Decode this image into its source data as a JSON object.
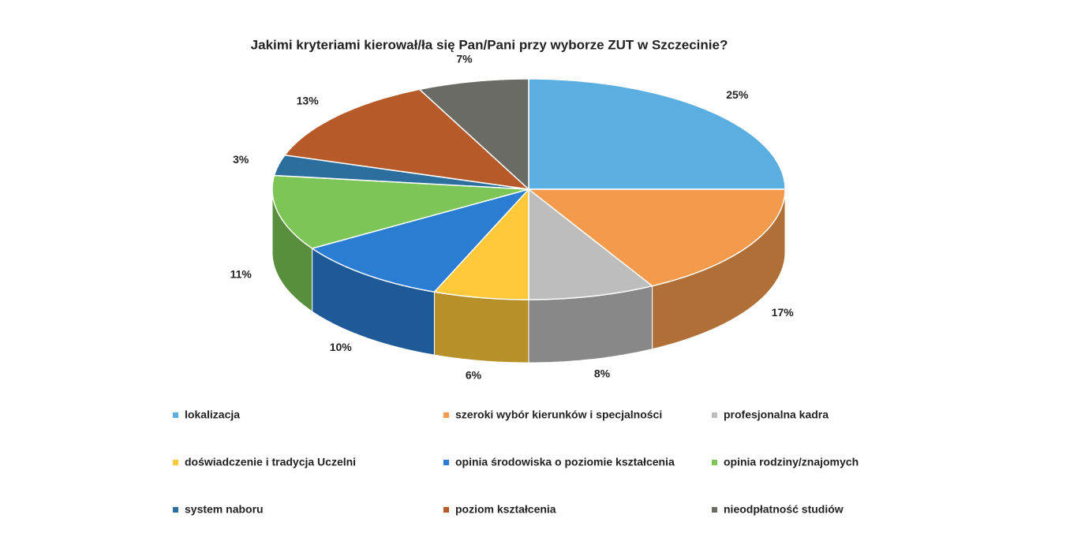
{
  "chart_data": {
    "type": "pie3d",
    "title": "Jakimi kryteriami kierował/ła się Pan/Pani przy wyborze ZUT w Szczecinie?",
    "categories": [
      "lokalizacja",
      "szeroki wybór kierunków i specjalności",
      "profesjonalna kadra",
      "doświadczenie i tradycja Uczelni",
      "opinia środowiska o poziomie kształcenia",
      "opinia rodziny/znajomych",
      "system naboru",
      "poziom kształcenia",
      "nieodpłatność studiów"
    ],
    "values": [
      25,
      17,
      8,
      6,
      10,
      11,
      3,
      13,
      7
    ],
    "value_labels": [
      "25%",
      "17%",
      "8%",
      "6%",
      "10%",
      "11%",
      "3%",
      "13%",
      "7%"
    ],
    "colors": [
      "#5aaee0",
      "#f39a4c",
      "#bdbdbd",
      "#fdc93a",
      "#2a7dd3",
      "#7cc556",
      "#2c6f9e",
      "#b65a2a",
      "#6b6b66"
    ],
    "legend": "bottom"
  }
}
